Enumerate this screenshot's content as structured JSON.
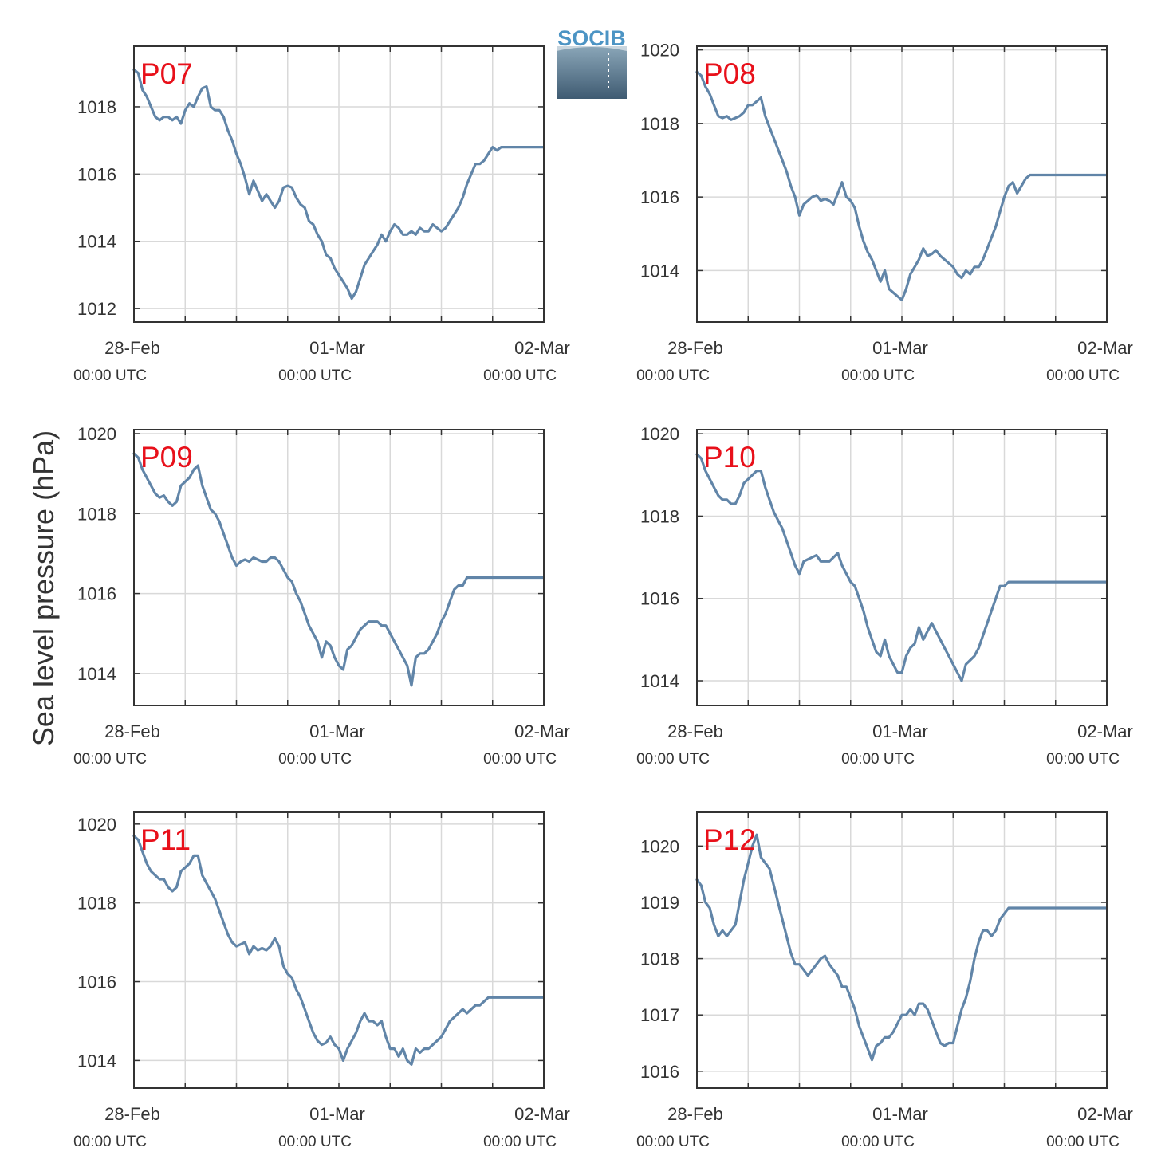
{
  "ylabel": "Sea level pressure (hPa)",
  "logo": {
    "text": "SOCIB",
    "text_color": "#4c94c4",
    "gradient_top": "#8aa6b8",
    "gradient_bottom": "#3f5b72"
  },
  "colors": {
    "series": "#6185a8",
    "label": "#e8101a",
    "grid": "#d9d9d9",
    "axis": "#333333"
  },
  "x_ticks": [
    {
      "line1": "28-Feb",
      "line2": "00:00 UTC"
    },
    {
      "line1": "01-Mar",
      "line2": "00:00 UTC"
    },
    {
      "line1": "02-Mar",
      "line2": "00:00 UTC"
    }
  ],
  "chart_data": [
    {
      "type": "line",
      "label": "P07",
      "xlim": [
        0,
        48
      ],
      "ylim": [
        1011.6,
        1019.8
      ],
      "yticks": [
        1012,
        1014,
        1016,
        1018
      ],
      "x": [
        0,
        0.5,
        1,
        1.5,
        2,
        2.5,
        3,
        3.5,
        4,
        4.5,
        5,
        5.5,
        6,
        6.5,
        7,
        7.5,
        8,
        8.5,
        9,
        9.5,
        10,
        10.5,
        11,
        11.5,
        12,
        12.5,
        13,
        13.5,
        14,
        14.5,
        15,
        15.5,
        16,
        16.5,
        17,
        17.5,
        18,
        18.5,
        19,
        19.5,
        20,
        20.5,
        21,
        21.5,
        22,
        22.5,
        23,
        23.5,
        24,
        24.5,
        25,
        25.5,
        26,
        26.5,
        27,
        27.5,
        28,
        28.5,
        29,
        29.5,
        30,
        30.5,
        31,
        31.5,
        32,
        32.5,
        33,
        33.5,
        34,
        34.5,
        35,
        35.5,
        36,
        36.5,
        37,
        37.5,
        38,
        38.5,
        39,
        39.5,
        40,
        40.5,
        41,
        41.5,
        42,
        42.5,
        43,
        43.5,
        44,
        44.5,
        45,
        45.5,
        46,
        46.5,
        47,
        47.5,
        48
      ],
      "y": [
        1019.1,
        1019.0,
        1018.5,
        1018.3,
        1018.0,
        1017.7,
        1017.6,
        1017.7,
        1017.7,
        1017.6,
        1017.7,
        1017.5,
        1017.9,
        1018.1,
        1018.0,
        1018.3,
        1018.55,
        1018.6,
        1018.0,
        1017.9,
        1017.9,
        1017.7,
        1017.3,
        1017.0,
        1016.6,
        1016.3,
        1015.9,
        1015.4,
        1015.8,
        1015.5,
        1015.2,
        1015.4,
        1015.2,
        1015.0,
        1015.2,
        1015.6,
        1015.65,
        1015.6,
        1015.3,
        1015.1,
        1015.0,
        1014.6,
        1014.5,
        1014.2,
        1014.0,
        1013.6,
        1013.5,
        1013.2,
        1013.0,
        1012.8,
        1012.6,
        1012.3,
        1012.5,
        1012.9,
        1013.3,
        1013.5,
        1013.7,
        1013.9,
        1014.2,
        1014.0,
        1014.3,
        1014.5,
        1014.4,
        1014.2,
        1014.2,
        1014.3,
        1014.2,
        1014.4,
        1014.3,
        1014.3,
        1014.5,
        1014.4,
        1014.3,
        1014.4,
        1014.6,
        1014.8,
        1015.0,
        1015.3,
        1015.7,
        1016.0,
        1016.3,
        1016.3,
        1016.4,
        1016.6,
        1016.8,
        1016.7,
        1016.8,
        1016.8,
        1016.8,
        1016.8,
        1016.8,
        1016.8,
        1016.8,
        1016.8,
        1016.8,
        1016.8,
        1016.8
      ]
    },
    {
      "type": "line",
      "label": "P08",
      "xlim": [
        0,
        48
      ],
      "ylim": [
        1012.6,
        1020.1
      ],
      "yticks": [
        1014,
        1016,
        1018,
        1020
      ],
      "x": [
        0,
        0.5,
        1,
        1.5,
        2,
        2.5,
        3,
        3.5,
        4,
        4.5,
        5,
        5.5,
        6,
        6.5,
        7,
        7.5,
        8,
        8.5,
        9,
        9.5,
        10,
        10.5,
        11,
        11.5,
        12,
        12.5,
        13,
        13.5,
        14,
        14.5,
        15,
        15.5,
        16,
        16.5,
        17,
        17.5,
        18,
        18.5,
        19,
        19.5,
        20,
        20.5,
        21,
        21.5,
        22,
        22.5,
        23,
        23.5,
        24,
        24.5,
        25,
        25.5,
        26,
        26.5,
        27,
        27.5,
        28,
        28.5,
        29,
        29.5,
        30,
        30.5,
        31,
        31.5,
        32,
        32.5,
        33,
        33.5,
        34,
        34.5,
        35,
        35.5,
        36,
        36.5,
        37,
        37.5,
        38,
        38.5,
        39,
        39.5,
        40,
        40.5,
        41,
        41.5,
        42,
        42.5,
        43,
        43.5,
        44,
        44.5,
        45,
        45.5,
        46,
        46.5,
        47,
        47.5,
        48
      ],
      "y": [
        1019.4,
        1019.3,
        1019.0,
        1018.8,
        1018.5,
        1018.2,
        1018.15,
        1018.2,
        1018.1,
        1018.15,
        1018.2,
        1018.3,
        1018.5,
        1018.5,
        1018.6,
        1018.7,
        1018.2,
        1017.9,
        1017.6,
        1017.3,
        1017.0,
        1016.7,
        1016.3,
        1016.0,
        1015.5,
        1015.8,
        1015.9,
        1016.0,
        1016.05,
        1015.9,
        1015.95,
        1015.9,
        1015.8,
        1016.1,
        1016.4,
        1016.0,
        1015.9,
        1015.7,
        1015.2,
        1014.8,
        1014.5,
        1014.3,
        1014.0,
        1013.7,
        1014.0,
        1013.5,
        1013.4,
        1013.3,
        1013.2,
        1013.5,
        1013.9,
        1014.1,
        1014.3,
        1014.6,
        1014.4,
        1014.45,
        1014.55,
        1014.4,
        1014.3,
        1014.2,
        1014.1,
        1013.9,
        1013.8,
        1014.0,
        1013.9,
        1014.1,
        1014.1,
        1014.3,
        1014.6,
        1014.9,
        1015.2,
        1015.6,
        1016.0,
        1016.3,
        1016.4,
        1016.1,
        1016.3,
        1016.5,
        1016.6,
        1016.6,
        1016.6,
        1016.6,
        1016.6,
        1016.6,
        1016.6,
        1016.6,
        1016.6,
        1016.6,
        1016.6,
        1016.6,
        1016.6,
        1016.6,
        1016.6,
        1016.6,
        1016.6,
        1016.6,
        1016.6
      ]
    },
    {
      "type": "line",
      "label": "P09",
      "xlim": [
        0,
        48
      ],
      "ylim": [
        1013.2,
        1020.1
      ],
      "yticks": [
        1014,
        1016,
        1018,
        1020
      ],
      "x": [
        0,
        0.5,
        1,
        1.5,
        2,
        2.5,
        3,
        3.5,
        4,
        4.5,
        5,
        5.5,
        6,
        6.5,
        7,
        7.5,
        8,
        8.5,
        9,
        9.5,
        10,
        10.5,
        11,
        11.5,
        12,
        12.5,
        13,
        13.5,
        14,
        14.5,
        15,
        15.5,
        16,
        16.5,
        17,
        17.5,
        18,
        18.5,
        19,
        19.5,
        20,
        20.5,
        21,
        21.5,
        22,
        22.5,
        23,
        23.5,
        24,
        24.5,
        25,
        25.5,
        26,
        26.5,
        27,
        27.5,
        28,
        28.5,
        29,
        29.5,
        30,
        30.5,
        31,
        31.5,
        32,
        32.5,
        33,
        33.5,
        34,
        34.5,
        35,
        35.5,
        36,
        36.5,
        37,
        37.5,
        38,
        38.5,
        39,
        39.5,
        40,
        40.5,
        41,
        41.5,
        42,
        42.5,
        43,
        43.5,
        44,
        44.5,
        45,
        45.5,
        46,
        46.5,
        47,
        47.5,
        48
      ],
      "y": [
        1019.5,
        1019.4,
        1019.1,
        1018.9,
        1018.7,
        1018.5,
        1018.4,
        1018.45,
        1018.3,
        1018.2,
        1018.3,
        1018.7,
        1018.8,
        1018.9,
        1019.1,
        1019.2,
        1018.7,
        1018.4,
        1018.1,
        1018.0,
        1017.8,
        1017.5,
        1017.2,
        1016.9,
        1016.7,
        1016.8,
        1016.85,
        1016.8,
        1016.9,
        1016.85,
        1016.8,
        1016.8,
        1016.9,
        1016.9,
        1016.8,
        1016.6,
        1016.4,
        1016.3,
        1016.0,
        1015.8,
        1015.5,
        1015.2,
        1015.0,
        1014.8,
        1014.4,
        1014.8,
        1014.7,
        1014.4,
        1014.2,
        1014.1,
        1014.6,
        1014.7,
        1014.9,
        1015.1,
        1015.2,
        1015.3,
        1015.3,
        1015.3,
        1015.2,
        1015.2,
        1015.0,
        1014.8,
        1014.6,
        1014.4,
        1014.2,
        1013.7,
        1014.4,
        1014.5,
        1014.5,
        1014.6,
        1014.8,
        1015.0,
        1015.3,
        1015.5,
        1015.8,
        1016.1,
        1016.2,
        1016.2,
        1016.4,
        1016.4,
        1016.4,
        1016.4,
        1016.4,
        1016.4,
        1016.4,
        1016.4,
        1016.4,
        1016.4,
        1016.4,
        1016.4,
        1016.4,
        1016.4,
        1016.4,
        1016.4,
        1016.4,
        1016.4,
        1016.4
      ]
    },
    {
      "type": "line",
      "label": "P10",
      "xlim": [
        0,
        48
      ],
      "ylim": [
        1013.4,
        1020.1
      ],
      "yticks": [
        1014,
        1016,
        1018,
        1020
      ],
      "x": [
        0,
        0.5,
        1,
        1.5,
        2,
        2.5,
        3,
        3.5,
        4,
        4.5,
        5,
        5.5,
        6,
        6.5,
        7,
        7.5,
        8,
        8.5,
        9,
        9.5,
        10,
        10.5,
        11,
        11.5,
        12,
        12.5,
        13,
        13.5,
        14,
        14.5,
        15,
        15.5,
        16,
        16.5,
        17,
        17.5,
        18,
        18.5,
        19,
        19.5,
        20,
        20.5,
        21,
        21.5,
        22,
        22.5,
        23,
        23.5,
        24,
        24.5,
        25,
        25.5,
        26,
        26.5,
        27,
        27.5,
        28,
        28.5,
        29,
        29.5,
        30,
        30.5,
        31,
        31.5,
        32,
        32.5,
        33,
        33.5,
        34,
        34.5,
        35,
        35.5,
        36,
        36.5,
        37,
        37.5,
        38,
        38.5,
        39,
        39.5,
        40,
        40.5,
        41,
        41.5,
        42,
        42.5,
        43,
        43.5,
        44,
        44.5,
        45,
        45.5,
        46,
        46.5,
        47,
        47.5,
        48
      ],
      "y": [
        1019.5,
        1019.4,
        1019.1,
        1018.9,
        1018.7,
        1018.5,
        1018.4,
        1018.4,
        1018.3,
        1018.3,
        1018.5,
        1018.8,
        1018.9,
        1019.0,
        1019.1,
        1019.1,
        1018.7,
        1018.4,
        1018.1,
        1017.9,
        1017.7,
        1017.4,
        1017.1,
        1016.8,
        1016.6,
        1016.9,
        1016.95,
        1017.0,
        1017.05,
        1016.9,
        1016.9,
        1016.9,
        1017.0,
        1017.1,
        1016.8,
        1016.6,
        1016.4,
        1016.3,
        1016.0,
        1015.7,
        1015.3,
        1015.0,
        1014.7,
        1014.6,
        1015.0,
        1014.6,
        1014.4,
        1014.2,
        1014.2,
        1014.6,
        1014.8,
        1014.9,
        1015.3,
        1015.0,
        1015.2,
        1015.4,
        1015.2,
        1015.0,
        1014.8,
        1014.6,
        1014.4,
        1014.2,
        1014.0,
        1014.4,
        1014.5,
        1014.6,
        1014.8,
        1015.1,
        1015.4,
        1015.7,
        1016.0,
        1016.3,
        1016.3,
        1016.4,
        1016.4,
        1016.4,
        1016.4,
        1016.4,
        1016.4,
        1016.4,
        1016.4,
        1016.4,
        1016.4,
        1016.4,
        1016.4,
        1016.4,
        1016.4,
        1016.4,
        1016.4,
        1016.4,
        1016.4,
        1016.4,
        1016.4,
        1016.4,
        1016.4,
        1016.4,
        1016.4
      ]
    },
    {
      "type": "line",
      "label": "P11",
      "xlim": [
        0,
        48
      ],
      "ylim": [
        1013.3,
        1020.3
      ],
      "yticks": [
        1014,
        1016,
        1018,
        1020
      ],
      "x": [
        0,
        0.5,
        1,
        1.5,
        2,
        2.5,
        3,
        3.5,
        4,
        4.5,
        5,
        5.5,
        6,
        6.5,
        7,
        7.5,
        8,
        8.5,
        9,
        9.5,
        10,
        10.5,
        11,
        11.5,
        12,
        12.5,
        13,
        13.5,
        14,
        14.5,
        15,
        15.5,
        16,
        16.5,
        17,
        17.5,
        18,
        18.5,
        19,
        19.5,
        20,
        20.5,
        21,
        21.5,
        22,
        22.5,
        23,
        23.5,
        24,
        24.5,
        25,
        25.5,
        26,
        26.5,
        27,
        27.5,
        28,
        28.5,
        29,
        29.5,
        30,
        30.5,
        31,
        31.5,
        32,
        32.5,
        33,
        33.5,
        34,
        34.5,
        35,
        35.5,
        36,
        36.5,
        37,
        37.5,
        38,
        38.5,
        39,
        39.5,
        40,
        40.5,
        41,
        41.5,
        42,
        42.5,
        43,
        43.5,
        44,
        44.5,
        45,
        45.5,
        46,
        46.5,
        47,
        47.5,
        48
      ],
      "y": [
        1019.7,
        1019.6,
        1019.3,
        1019.0,
        1018.8,
        1018.7,
        1018.6,
        1018.6,
        1018.4,
        1018.3,
        1018.4,
        1018.8,
        1018.9,
        1019.0,
        1019.2,
        1019.2,
        1018.7,
        1018.5,
        1018.3,
        1018.1,
        1017.8,
        1017.5,
        1017.2,
        1017.0,
        1016.9,
        1016.95,
        1017.0,
        1016.7,
        1016.9,
        1016.8,
        1016.85,
        1016.8,
        1016.9,
        1017.1,
        1016.9,
        1016.4,
        1016.2,
        1016.1,
        1015.8,
        1015.6,
        1015.3,
        1015.0,
        1014.7,
        1014.5,
        1014.4,
        1014.45,
        1014.6,
        1014.4,
        1014.3,
        1014.0,
        1014.3,
        1014.5,
        1014.7,
        1015.0,
        1015.2,
        1015.0,
        1015.0,
        1014.9,
        1015.0,
        1014.6,
        1014.3,
        1014.3,
        1014.1,
        1014.3,
        1014.0,
        1013.9,
        1014.3,
        1014.2,
        1014.3,
        1014.3,
        1014.4,
        1014.5,
        1014.6,
        1014.8,
        1015.0,
        1015.1,
        1015.2,
        1015.3,
        1015.2,
        1015.3,
        1015.4,
        1015.4,
        1015.5,
        1015.6,
        1015.6,
        1015.6,
        1015.6,
        1015.6,
        1015.6,
        1015.6,
        1015.6,
        1015.6,
        1015.6,
        1015.6,
        1015.6,
        1015.6,
        1015.6
      ]
    },
    {
      "type": "line",
      "label": "P12",
      "xlim": [
        0,
        48
      ],
      "ylim": [
        1015.7,
        1020.6
      ],
      "yticks": [
        1016,
        1017,
        1018,
        1019,
        1020
      ],
      "x": [
        0,
        0.5,
        1,
        1.5,
        2,
        2.5,
        3,
        3.5,
        4,
        4.5,
        5,
        5.5,
        6,
        6.5,
        7,
        7.5,
        8,
        8.5,
        9,
        9.5,
        10,
        10.5,
        11,
        11.5,
        12,
        12.5,
        13,
        13.5,
        14,
        14.5,
        15,
        15.5,
        16,
        16.5,
        17,
        17.5,
        18,
        18.5,
        19,
        19.5,
        20,
        20.5,
        21,
        21.5,
        22,
        22.5,
        23,
        23.5,
        24,
        24.5,
        25,
        25.5,
        26,
        26.5,
        27,
        27.5,
        28,
        28.5,
        29,
        29.5,
        30,
        30.5,
        31,
        31.5,
        32,
        32.5,
        33,
        33.5,
        34,
        34.5,
        35,
        35.5,
        36,
        36.5,
        37,
        37.5,
        38,
        38.5,
        39,
        39.5,
        40,
        40.5,
        41,
        41.5,
        42,
        42.5,
        43,
        43.5,
        44,
        44.5,
        45,
        45.5,
        46,
        46.5,
        47,
        47.5,
        48
      ],
      "y": [
        1019.4,
        1019.3,
        1019.0,
        1018.9,
        1018.6,
        1018.4,
        1018.5,
        1018.4,
        1018.5,
        1018.6,
        1019.0,
        1019.4,
        1019.7,
        1020.0,
        1020.2,
        1019.8,
        1019.7,
        1019.6,
        1019.3,
        1019.0,
        1018.7,
        1018.4,
        1018.1,
        1017.9,
        1017.9,
        1017.8,
        1017.7,
        1017.8,
        1017.9,
        1018.0,
        1018.05,
        1017.9,
        1017.8,
        1017.7,
        1017.5,
        1017.5,
        1017.3,
        1017.1,
        1016.8,
        1016.6,
        1016.4,
        1016.2,
        1016.45,
        1016.5,
        1016.6,
        1016.6,
        1016.7,
        1016.85,
        1017.0,
        1017.0,
        1017.1,
        1017.0,
        1017.2,
        1017.2,
        1017.1,
        1016.9,
        1016.7,
        1016.5,
        1016.45,
        1016.5,
        1016.5,
        1016.8,
        1017.1,
        1017.3,
        1017.6,
        1018.0,
        1018.3,
        1018.5,
        1018.5,
        1018.4,
        1018.5,
        1018.7,
        1018.8,
        1018.9,
        1018.9,
        1018.9,
        1018.9,
        1018.9,
        1018.9,
        1018.9,
        1018.9,
        1018.9,
        1018.9,
        1018.9,
        1018.9,
        1018.9,
        1018.9,
        1018.9,
        1018.9,
        1018.9,
        1018.9,
        1018.9,
        1018.9,
        1018.9,
        1018.9,
        1018.9,
        1018.9
      ]
    }
  ]
}
